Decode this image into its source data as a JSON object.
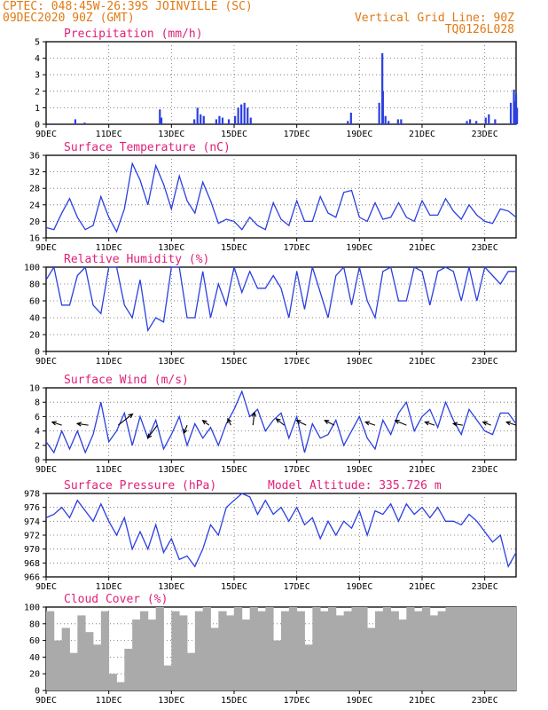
{
  "header": {
    "line1": "CPTEC:  048:45W-26:39S  JOINVILLE (SC)",
    "line2": "09DEC2020 90Z (GMT)",
    "grid_note": "Vertical Grid Line: 90Z",
    "code": "TQ0126L028"
  },
  "colors": {
    "header": "#e07a14",
    "title": "#e0207a",
    "series": "#2b3fe0",
    "cloud": "#aaaaaa",
    "arrow": "#000000"
  },
  "date_labels": [
    "9DEC",
    "11DEC",
    "13DEC",
    "15DEC",
    "17DEC",
    "19DEC",
    "21DEC",
    "23DEC"
  ],
  "chart_data": [
    {
      "type": "bar",
      "title": "Precipitation (mm/h)",
      "ylim": [
        0,
        5
      ],
      "yticks": [
        "0",
        "1",
        "2",
        "3",
        "4",
        "5"
      ],
      "x_days": [
        0.1,
        0.9,
        1.2,
        3.6,
        3.65,
        4.7,
        4.8,
        4.9,
        5.0,
        5.4,
        5.5,
        5.6,
        5.8,
        6.0,
        6.1,
        6.2,
        6.3,
        6.4,
        6.5,
        9.6,
        9.7,
        10.6,
        10.7,
        10.72,
        10.8,
        10.9,
        11.2,
        11.3,
        13.4,
        13.5,
        13.7,
        14.0,
        14.1,
        14.3,
        14.8,
        14.9,
        14.95,
        14.97,
        15.0
      ],
      "values": [
        0.05,
        0.3,
        0.1,
        0.9,
        0.4,
        0.3,
        1.0,
        0.6,
        0.5,
        0.3,
        0.5,
        0.4,
        0.3,
        0.5,
        1.0,
        1.2,
        1.3,
        1.0,
        0.4,
        0.2,
        0.7,
        1.3,
        4.3,
        2.0,
        0.5,
        0.2,
        0.3,
        0.3,
        0.2,
        0.3,
        0.2,
        0.4,
        0.6,
        0.3,
        1.3,
        2.1,
        1.4,
        1.8,
        1.0
      ]
    },
    {
      "type": "line",
      "title": "Surface Temperature (nC)",
      "ylim": [
        16,
        36
      ],
      "yticks": [
        "16",
        "20",
        "24",
        "28",
        "32",
        "36"
      ],
      "x_days": [
        0.0,
        0.25,
        0.5,
        0.75,
        1.0,
        1.25,
        1.5,
        1.75,
        2.0,
        2.25,
        2.5,
        2.75,
        3.0,
        3.25,
        3.5,
        3.75,
        4.0,
        4.25,
        4.5,
        4.75,
        5.0,
        5.25,
        5.5,
        5.75,
        6.0,
        6.25,
        6.5,
        6.75,
        7.0,
        7.25,
        7.5,
        7.75,
        8.0,
        8.25,
        8.5,
        8.75,
        9.0,
        9.25,
        9.5,
        9.75,
        10.0,
        10.25,
        10.5,
        10.75,
        11.0,
        11.25,
        11.5,
        11.75,
        12.0,
        12.25,
        12.5,
        12.75,
        13.0,
        13.25,
        13.5,
        13.75,
        14.0,
        14.25,
        14.5,
        14.75,
        15.0
      ],
      "values": [
        18.5,
        18.0,
        22.0,
        25.5,
        21.0,
        18.0,
        19.0,
        26.0,
        21.0,
        17.5,
        23.0,
        34.0,
        30.0,
        24.0,
        33.5,
        29.0,
        23.0,
        31.0,
        25.0,
        22.0,
        29.5,
        25.0,
        19.5,
        20.5,
        20.0,
        18.0,
        21.0,
        19.0,
        18.0,
        24.5,
        20.5,
        19.0,
        25.0,
        20.0,
        20.0,
        26.0,
        22.0,
        21.0,
        27.0,
        27.5,
        21.0,
        20.0,
        24.5,
        20.5,
        21.0,
        24.5,
        21.0,
        20.0,
        25.0,
        21.5,
        21.5,
        25.5,
        22.5,
        20.5,
        24.0,
        21.5,
        20.0,
        19.5,
        23.0,
        22.5,
        21.0
      ]
    },
    {
      "type": "line",
      "title": "Relative Humidity (%)",
      "ylim": [
        0,
        100
      ],
      "yticks": [
        "0",
        "20",
        "40",
        "60",
        "80",
        "100"
      ],
      "x_days": [
        0.0,
        0.25,
        0.5,
        0.75,
        1.0,
        1.25,
        1.5,
        1.75,
        2.0,
        2.25,
        2.5,
        2.75,
        3.0,
        3.25,
        3.5,
        3.75,
        4.0,
        4.25,
        4.5,
        4.75,
        5.0,
        5.25,
        5.5,
        5.75,
        6.0,
        6.25,
        6.5,
        6.75,
        7.0,
        7.25,
        7.5,
        7.75,
        8.0,
        8.25,
        8.5,
        8.75,
        9.0,
        9.25,
        9.5,
        9.75,
        10.0,
        10.25,
        10.5,
        10.75,
        11.0,
        11.25,
        11.5,
        11.75,
        12.0,
        12.25,
        12.5,
        12.75,
        13.0,
        13.25,
        13.5,
        13.75,
        14.0,
        14.25,
        14.5,
        14.75,
        15.0
      ],
      "values": [
        85,
        100,
        55,
        55,
        90,
        100,
        55,
        45,
        100,
        100,
        55,
        40,
        85,
        25,
        40,
        35,
        100,
        100,
        40,
        40,
        95,
        40,
        80,
        55,
        100,
        70,
        95,
        75,
        75,
        90,
        75,
        40,
        95,
        50,
        100,
        70,
        40,
        90,
        100,
        55,
        100,
        60,
        40,
        95,
        100,
        60,
        60,
        100,
        95,
        55,
        95,
        100,
        95,
        60,
        100,
        60,
        100,
        90,
        80,
        95,
        95
      ]
    },
    {
      "type": "line",
      "title": "Surface Wind (m/s)",
      "ylim": [
        0,
        10
      ],
      "yticks": [
        "0",
        "2",
        "4",
        "6",
        "8",
        "10"
      ],
      "x_days": [
        0.0,
        0.25,
        0.5,
        0.75,
        1.0,
        1.25,
        1.5,
        1.75,
        2.0,
        2.25,
        2.5,
        2.75,
        3.0,
        3.25,
        3.5,
        3.75,
        4.0,
        4.25,
        4.5,
        4.75,
        5.0,
        5.25,
        5.5,
        5.75,
        6.0,
        6.25,
        6.5,
        6.75,
        7.0,
        7.25,
        7.5,
        7.75,
        8.0,
        8.25,
        8.5,
        8.75,
        9.0,
        9.25,
        9.5,
        9.75,
        10.0,
        10.25,
        10.5,
        10.75,
        11.0,
        11.25,
        11.5,
        11.75,
        12.0,
        12.25,
        12.5,
        12.75,
        13.0,
        13.25,
        13.5,
        13.75,
        14.0,
        14.25,
        14.5,
        14.75,
        15.0
      ],
      "values": [
        2.5,
        1.0,
        4.0,
        1.5,
        4.0,
        1.0,
        3.5,
        8.0,
        2.5,
        4.0,
        6.5,
        2.0,
        6.0,
        3.0,
        5.5,
        1.5,
        3.5,
        6.0,
        2.0,
        5.0,
        3.0,
        4.5,
        2.0,
        5.0,
        7.0,
        9.5,
        6.0,
        7.0,
        4.0,
        5.5,
        6.5,
        3.0,
        6.0,
        1.0,
        5.0,
        3.0,
        3.5,
        5.5,
        2.0,
        4.0,
        6.0,
        3.0,
        1.5,
        5.5,
        3.5,
        6.5,
        8.0,
        4.0,
        6.0,
        7.0,
        4.5,
        8.0,
        5.5,
        3.5,
        7.0,
        5.5,
        4.0,
        3.5,
        6.5,
        6.5,
        5.0
      ],
      "arrows": [
        {
          "day": 0.5,
          "dx": -0.6,
          "dy": 0.2
        },
        {
          "day": 1.35,
          "dx": -0.7,
          "dy": 0.1
        },
        {
          "day": 2.3,
          "dx": 0.9,
          "dy": 0.7
        },
        {
          "day": 3.55,
          "dx": -0.6,
          "dy": -0.8
        },
        {
          "day": 4.5,
          "dx": -0.2,
          "dy": -0.5
        },
        {
          "day": 5.2,
          "dx": -0.4,
          "dy": 0.3
        },
        {
          "day": 5.9,
          "dx": -0.2,
          "dy": 0.4
        },
        {
          "day": 6.6,
          "dx": 0.1,
          "dy": 0.8
        },
        {
          "day": 7.6,
          "dx": -0.5,
          "dy": 0.4
        },
        {
          "day": 8.3,
          "dx": -0.6,
          "dy": 0.3
        },
        {
          "day": 9.2,
          "dx": -0.6,
          "dy": 0.3
        },
        {
          "day": 10.5,
          "dx": -0.6,
          "dy": 0.2
        },
        {
          "day": 11.5,
          "dx": -0.7,
          "dy": 0.3
        },
        {
          "day": 12.4,
          "dx": -0.6,
          "dy": 0.2
        },
        {
          "day": 13.3,
          "dx": -0.6,
          "dy": 0.1
        },
        {
          "day": 14.2,
          "dx": -0.5,
          "dy": 0.2
        },
        {
          "day": 15.0,
          "dx": -0.6,
          "dy": 0.2
        }
      ]
    },
    {
      "type": "line",
      "title": "Surface Pressure (hPa)",
      "subtitle": "Model Altitude: 335.726 m",
      "ylim": [
        966,
        978
      ],
      "yticks": [
        "966",
        "968",
        "970",
        "972",
        "974",
        "976",
        "978"
      ],
      "x_days": [
        0.0,
        0.25,
        0.5,
        0.75,
        1.0,
        1.25,
        1.5,
        1.75,
        2.0,
        2.25,
        2.5,
        2.75,
        3.0,
        3.25,
        3.5,
        3.75,
        4.0,
        4.25,
        4.5,
        4.75,
        5.0,
        5.25,
        5.5,
        5.75,
        6.0,
        6.25,
        6.5,
        6.75,
        7.0,
        7.25,
        7.5,
        7.75,
        8.0,
        8.25,
        8.5,
        8.75,
        9.0,
        9.25,
        9.5,
        9.75,
        10.0,
        10.25,
        10.5,
        10.75,
        11.0,
        11.25,
        11.5,
        11.75,
        12.0,
        12.25,
        12.5,
        12.75,
        13.0,
        13.25,
        13.5,
        13.75,
        14.0,
        14.25,
        14.5,
        14.75,
        15.0
      ],
      "values": [
        974.5,
        975.0,
        976.0,
        974.5,
        977.0,
        975.5,
        974.0,
        976.5,
        974.0,
        972.0,
        974.5,
        970.0,
        972.5,
        970.0,
        973.5,
        969.5,
        971.5,
        968.5,
        969.0,
        967.5,
        970.0,
        973.5,
        972.0,
        976.0,
        977.0,
        978.0,
        977.5,
        975.0,
        977.0,
        975.0,
        976.0,
        974.0,
        976.0,
        973.5,
        974.5,
        971.5,
        974.0,
        972.0,
        974.0,
        973.0,
        975.5,
        972.0,
        975.5,
        975.0,
        976.5,
        974.0,
        976.5,
        975.0,
        976.0,
        974.5,
        976.0,
        974.0,
        974.0,
        973.5,
        975.0,
        974.0,
        972.5,
        971.0,
        972.0,
        967.5,
        969.5
      ]
    },
    {
      "type": "bar",
      "title": "Cloud Cover (%)",
      "ylim": [
        0,
        100
      ],
      "yticks": [
        "0",
        "20",
        "40",
        "60",
        "80",
        "100"
      ],
      "x_days": [
        0.0,
        0.25,
        0.5,
        0.75,
        1.0,
        1.25,
        1.5,
        1.75,
        2.0,
        2.25,
        2.5,
        2.75,
        3.0,
        3.25,
        3.5,
        3.75,
        4.0,
        4.25,
        4.5,
        4.75,
        5.0,
        5.25,
        5.5,
        5.75,
        6.0,
        6.25,
        6.5,
        6.75,
        7.0,
        7.25,
        7.5,
        7.75,
        8.0,
        8.25,
        8.5,
        8.75,
        9.0,
        9.25,
        9.5,
        9.75,
        10.0,
        10.25,
        10.5,
        10.75,
        11.0,
        11.25,
        11.5,
        11.75,
        12.0,
        12.25,
        12.5,
        12.75,
        13.0,
        13.25,
        13.5,
        13.75,
        14.0,
        14.25,
        14.5,
        14.75
      ],
      "values": [
        95,
        60,
        75,
        45,
        90,
        70,
        55,
        95,
        20,
        10,
        50,
        85,
        95,
        85,
        100,
        30,
        95,
        90,
        45,
        95,
        100,
        75,
        95,
        90,
        100,
        85,
        100,
        95,
        100,
        60,
        95,
        100,
        95,
        55,
        100,
        95,
        100,
        90,
        95,
        100,
        100,
        75,
        95,
        100,
        95,
        85,
        100,
        95,
        100,
        90,
        95,
        100,
        100,
        100,
        100,
        100,
        100,
        100,
        100,
        100
      ]
    }
  ]
}
